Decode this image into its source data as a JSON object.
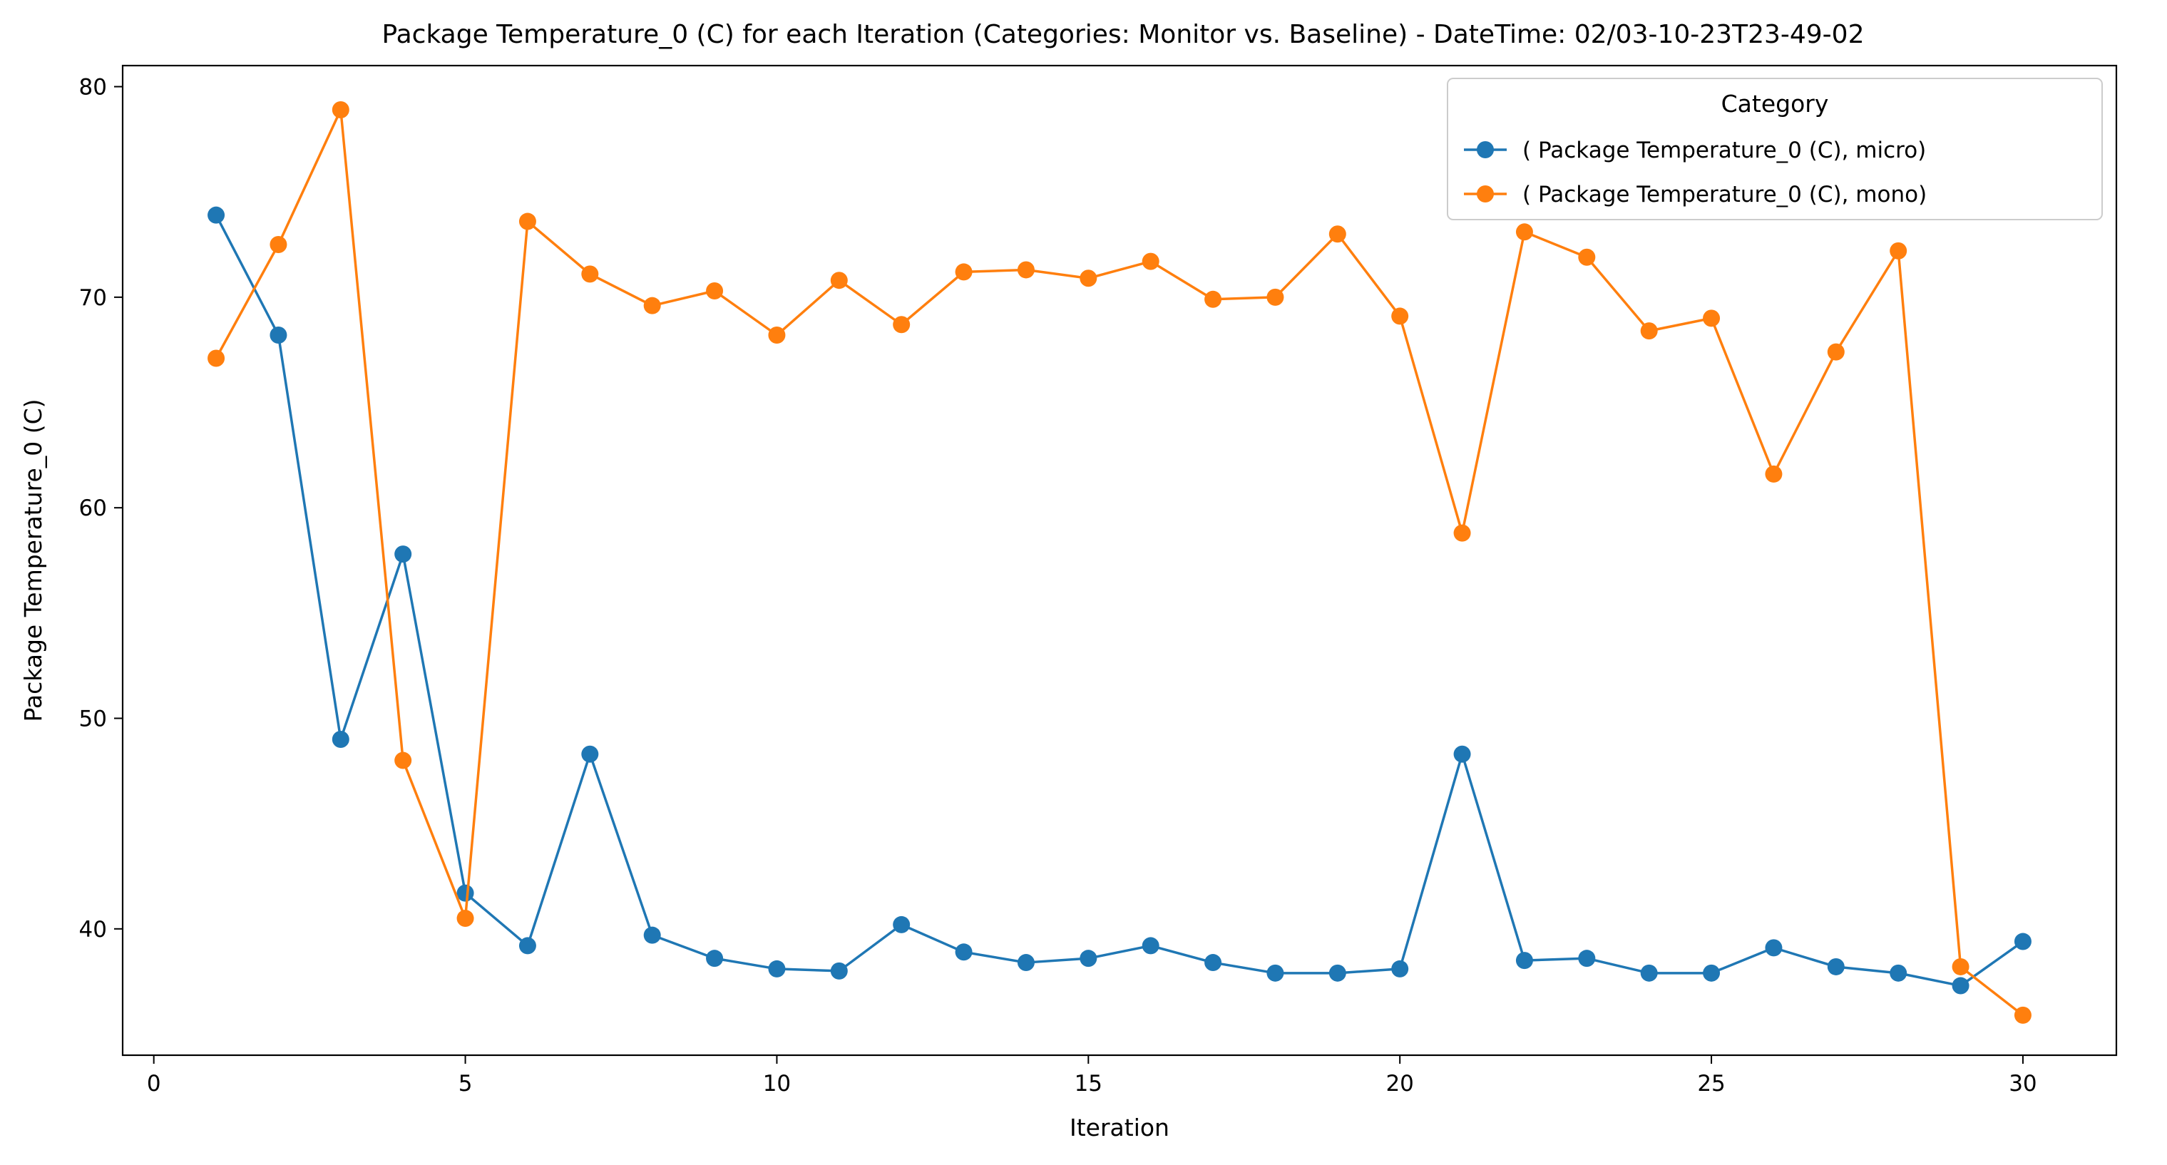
{
  "chart_data": {
    "type": "line",
    "title": "Package Temperature_0 (C) for each Iteration (Categories: Monitor vs. Baseline) - DateTime: 02/03-10-23T23-49-02",
    "xlabel": "Iteration",
    "ylabel": "Package Temperature_0 (C)",
    "xlim": [
      -0.5,
      31.5
    ],
    "ylim": [
      34,
      81
    ],
    "xticks": [
      0,
      5,
      10,
      15,
      20,
      25,
      30
    ],
    "yticks": [
      40,
      50,
      60,
      70,
      80
    ],
    "grid": false,
    "x": [
      1,
      2,
      3,
      4,
      5,
      6,
      7,
      8,
      9,
      10,
      11,
      12,
      13,
      14,
      15,
      16,
      17,
      18,
      19,
      20,
      21,
      22,
      23,
      24,
      25,
      26,
      27,
      28,
      29,
      30
    ],
    "legend": {
      "title": "Category",
      "placement": "top-right"
    },
    "series": [
      {
        "name": "( Package Temperature_0 (C), micro)",
        "color": "#1f77b4",
        "marker": "circle",
        "values": [
          73.9,
          68.2,
          49.0,
          57.8,
          41.7,
          39.2,
          48.3,
          39.7,
          38.6,
          38.1,
          38.0,
          40.2,
          38.9,
          38.4,
          38.6,
          39.2,
          38.4,
          37.9,
          37.9,
          38.1,
          48.3,
          38.5,
          38.6,
          37.9,
          37.9,
          39.1,
          38.2,
          37.9,
          37.3,
          39.4
        ]
      },
      {
        "name": "( Package Temperature_0 (C), mono)",
        "color": "#ff7f0e",
        "marker": "circle",
        "values": [
          67.1,
          72.5,
          78.9,
          48.0,
          40.5,
          73.6,
          71.1,
          69.6,
          70.3,
          68.2,
          70.8,
          68.7,
          71.2,
          71.3,
          70.9,
          71.7,
          69.9,
          70.0,
          73.0,
          69.1,
          58.8,
          73.1,
          71.9,
          68.4,
          69.0,
          61.6,
          67.4,
          72.2,
          38.2,
          35.9
        ]
      }
    ]
  }
}
